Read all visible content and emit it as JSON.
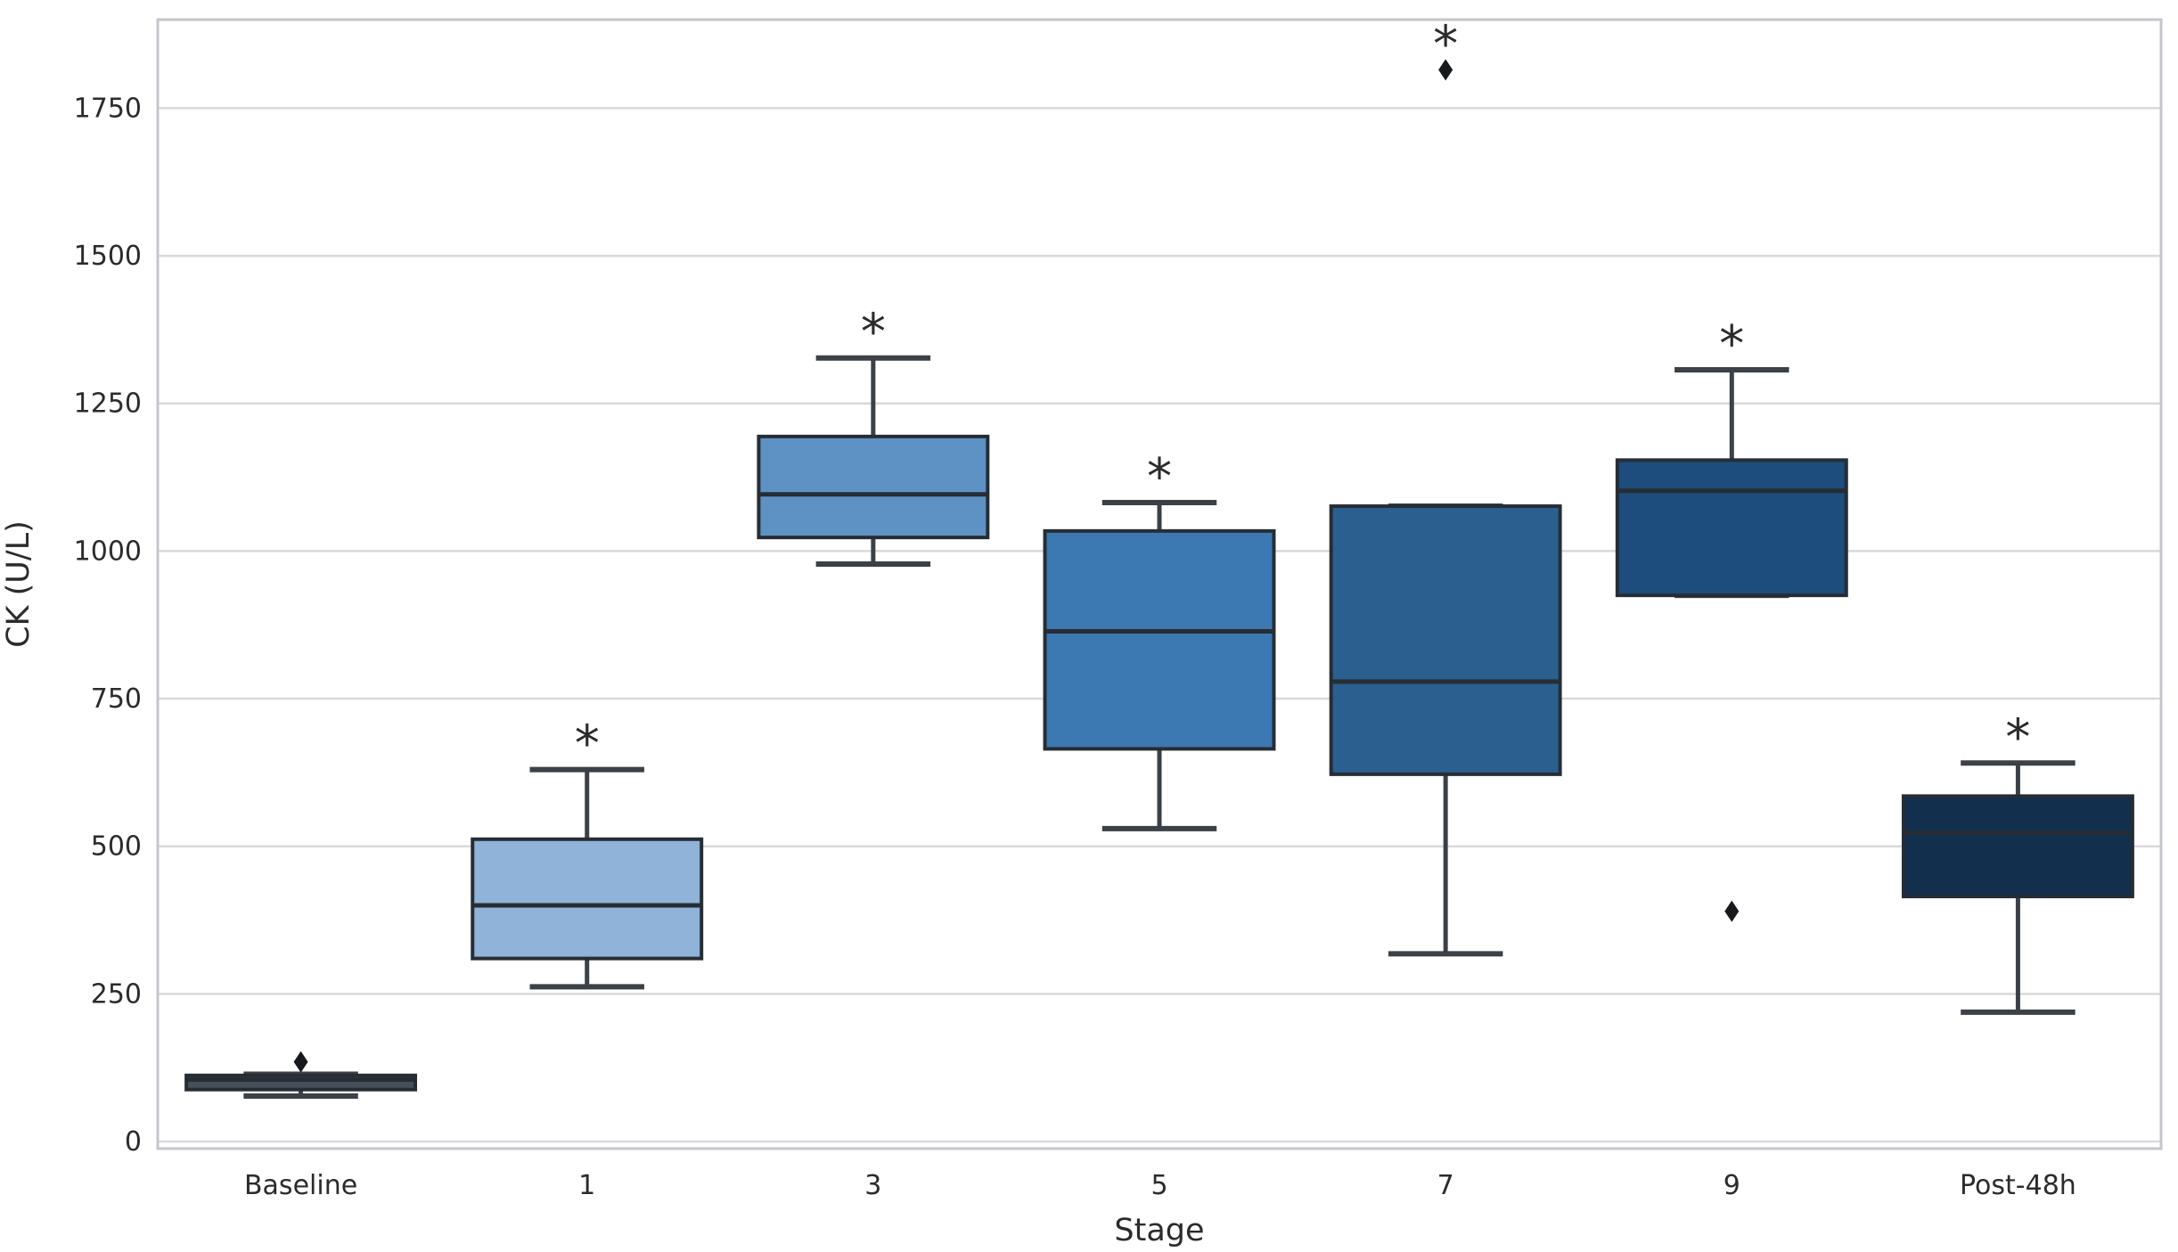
{
  "figure": {
    "background": "#ffffff"
  },
  "chart_data": {
    "type": "box",
    "title": "",
    "xlabel": "Stage",
    "ylabel": "CK (U/L)",
    "categories": [
      "Baseline",
      "1",
      "3",
      "5",
      "7",
      "9",
      "Post-48h"
    ],
    "ylim": [
      -12,
      1900
    ],
    "yticks": [
      0,
      250,
      500,
      750,
      1000,
      1250,
      1500,
      1750
    ],
    "grid": true,
    "legend": null,
    "boxes": [
      {
        "category": "Baseline",
        "whisker_low": 77,
        "q1": 88,
        "median": 105,
        "q3": 112,
        "whisker_high": 114,
        "outliers": [
          135
        ],
        "annotation": "",
        "fill": "#47505a"
      },
      {
        "category": "1",
        "whisker_low": 262,
        "q1": 310,
        "median": 400,
        "q3": 512,
        "whisker_high": 630,
        "outliers": [],
        "annotation": "*",
        "fill": "#8fb3d9"
      },
      {
        "category": "3",
        "whisker_low": 978,
        "q1": 1023,
        "median": 1096,
        "q3": 1194,
        "whisker_high": 1327,
        "outliers": [],
        "annotation": "*",
        "fill": "#5e92c4"
      },
      {
        "category": "5",
        "whisker_low": 530,
        "q1": 665,
        "median": 864,
        "q3": 1034,
        "whisker_high": 1082,
        "outliers": [],
        "annotation": "*",
        "fill": "#3c78b1"
      },
      {
        "category": "7",
        "whisker_low": 318,
        "q1": 622,
        "median": 779,
        "q3": 1076,
        "whisker_high": 1076,
        "outliers": [
          1815
        ],
        "annotation": "*",
        "fill": "#2b5f90"
      },
      {
        "category": "9",
        "whisker_low": 925,
        "q1": 925,
        "median": 1102,
        "q3": 1154,
        "whisker_high": 1307,
        "outliers": [
          390
        ],
        "annotation": "*",
        "fill": "#1d4d7c"
      },
      {
        "category": "Post-48h",
        "whisker_low": 219,
        "q1": 415,
        "median": 523,
        "q3": 585,
        "whisker_high": 641,
        "outliers": [],
        "annotation": "*",
        "fill": "#122f4e"
      }
    ],
    "style": {
      "grid_color": "#d9d9d9",
      "spine_color": "#c3c7cb",
      "edge_color": "#272d34",
      "whisker_color": "#3b4147",
      "outlier_color": "#17191c",
      "text_color": "#2b2b2b",
      "tick_font_size": 30,
      "label_font_size": 35,
      "annotation_font_size": 56
    }
  }
}
